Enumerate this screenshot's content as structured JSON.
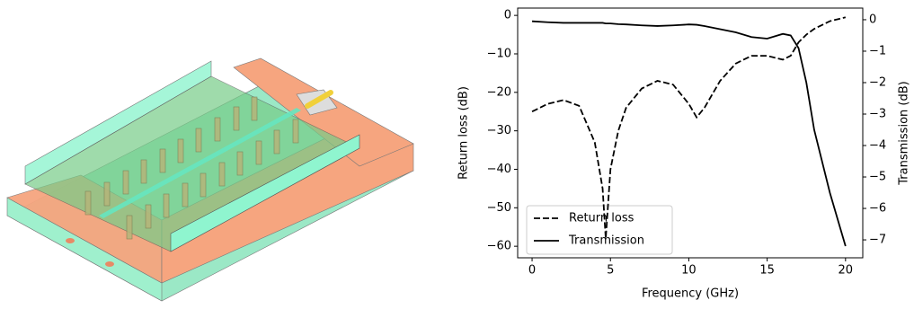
{
  "chart_data": {
    "type": "line",
    "xlabel": "Frequency (GHz)",
    "ylabel": "Return loss (dB)",
    "y2label": "Transmission (dB)",
    "x": [
      0,
      1,
      2,
      3,
      4,
      4.5,
      4.7,
      5,
      5.5,
      6,
      7,
      8,
      9,
      10,
      10.5,
      11,
      12,
      13,
      14,
      15,
      16,
      16.5,
      17,
      17.5,
      18,
      19,
      20
    ],
    "series": [
      {
        "name": "Return loss",
        "color": "#000000",
        "linestyle": "dashed",
        "axis": "y",
        "values": [
          -25,
          -23,
          -22,
          -23.5,
          -33,
          -45,
          -58,
          -40,
          -30,
          -24,
          -19,
          -17,
          -18,
          -23,
          -26.5,
          -24,
          -17,
          -12.5,
          -10.5,
          -10.5,
          -11.5,
          -10.5,
          -7,
          -5,
          -3.5,
          -1.5,
          -0.5
        ]
      },
      {
        "name": "Transmission",
        "color": "#000000",
        "linestyle": "solid",
        "axis": "y2",
        "values": [
          -0.05,
          -0.08,
          -0.1,
          -0.1,
          -0.1,
          -0.1,
          -0.12,
          -0.12,
          -0.14,
          -0.15,
          -0.18,
          -0.2,
          -0.18,
          -0.15,
          -0.16,
          -0.2,
          -0.3,
          -0.4,
          -0.55,
          -0.6,
          -0.45,
          -0.5,
          -0.9,
          -2,
          -3.5,
          -5.5,
          -7.2
        ]
      }
    ],
    "xlim": [
      -0.92,
      21.1
    ],
    "xticks": [
      0,
      5,
      10,
      15,
      20
    ],
    "ylim": [
      -63,
      1.9
    ],
    "yticks": [
      0,
      {
        "value": -10,
        "label": "−10"
      },
      {
        "value": -20,
        "label": "−20"
      },
      {
        "value": -30,
        "label": "−30"
      },
      {
        "value": -40,
        "label": "−40"
      },
      {
        "value": -50,
        "label": "−50"
      },
      {
        "value": -60,
        "label": "−60"
      }
    ],
    "y2lim": [
      -7.57,
      0.37
    ],
    "y2ticks": [
      0,
      {
        "value": -1,
        "label": "−1"
      },
      {
        "value": -2,
        "label": "−2"
      },
      {
        "value": -3,
        "label": "−3"
      },
      {
        "value": -4,
        "label": "−4"
      },
      {
        "value": -5,
        "label": "−5"
      },
      {
        "value": -6,
        "label": "−6"
      },
      {
        "value": -7,
        "label": "−7"
      }
    ],
    "legend": "lower left",
    "grid": false
  }
}
